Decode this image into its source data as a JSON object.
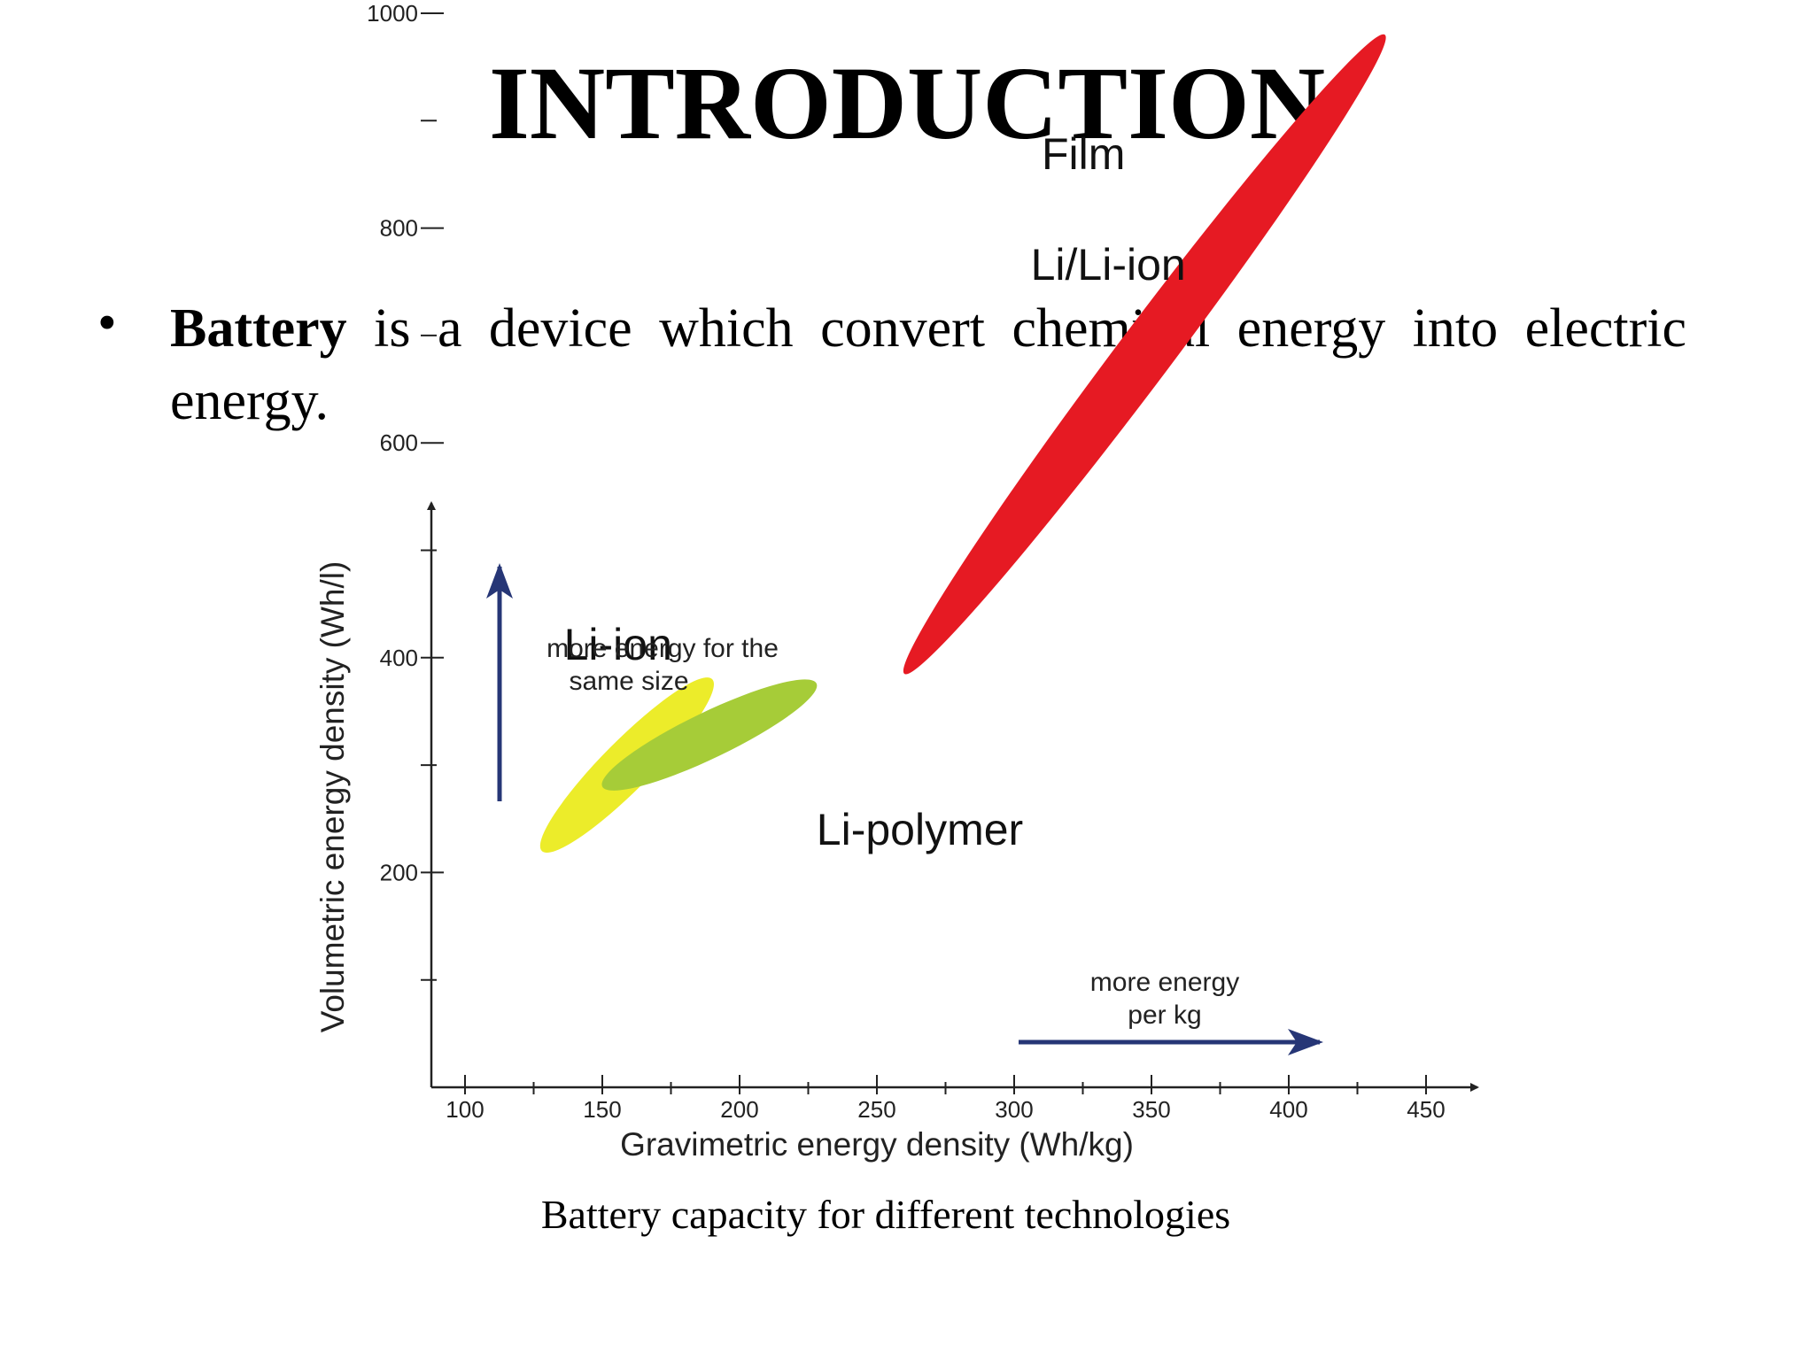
{
  "slide": {
    "title": "INTRODUCTION",
    "bullet_symbol": "•",
    "bullet_bold": "Battery",
    "bullet_rest": " is a device which convert chemical energy into electric energy.",
    "caption": "Battery capacity for different technologies"
  },
  "chart_data": {
    "type": "scatter",
    "xlabel": "Gravimetric energy density (Wh/kg)",
    "ylabel": "Volumetric energy density (Wh/l)",
    "xlim": [
      87,
      465
    ],
    "ylim": [
      0,
      1100
    ],
    "x_ticks": [
      100,
      150,
      200,
      250,
      300,
      350,
      400,
      450
    ],
    "y_ticks": [
      200,
      400,
      600,
      800,
      1000
    ],
    "regions": [
      {
        "name": "Li-ion",
        "color": "#ecec2a",
        "center": [
          160,
          300
        ],
        "endpoints": [
          [
            128,
            220
          ],
          [
            190,
            380
          ]
        ],
        "width": 55
      },
      {
        "name": "Li-polymer",
        "color": "#a6cc38",
        "center": [
          190,
          328
        ],
        "endpoints": [
          [
            150,
            280
          ],
          [
            228,
            376
          ]
        ],
        "width": 52
      },
      {
        "name": "Film Li/Li-ion",
        "color": "#e61a23",
        "center": [
          347,
          680
        ],
        "endpoints": [
          [
            260,
            385
          ],
          [
            435,
            980
          ]
        ],
        "width": 62
      }
    ],
    "labels": [
      {
        "text": "Film",
        "x": 310,
        "y": 855
      },
      {
        "text": "Li/Li-ion",
        "x": 306,
        "y": 752
      },
      {
        "text": "Li-ion",
        "x": 136,
        "y": 398
      },
      {
        "text": "Li-polymer",
        "x": 228,
        "y": 226
      }
    ],
    "annotations": [
      {
        "lines": [
          "more energy for the",
          "same size"
        ],
        "arrow_direction": "up"
      },
      {
        "lines": [
          "more energy",
          "per kg"
        ],
        "arrow_direction": "right"
      }
    ],
    "arrow_color": "#263676"
  }
}
